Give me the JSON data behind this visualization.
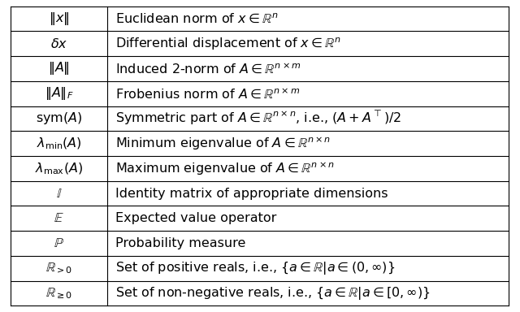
{
  "rows": [
    {
      "symbol": "$\\|x\\|$",
      "description": "Euclidean norm of $x \\in \\mathbb{R}^n$"
    },
    {
      "symbol": "$\\delta x$",
      "description": "Differential displacement of $x \\in \\mathbb{R}^n$"
    },
    {
      "symbol": "$\\|A\\|$",
      "description": "Induced 2-norm of $A \\in \\mathbb{R}^{n \\times m}$"
    },
    {
      "symbol": "$\\|A\\|_F$",
      "description": "Frobenius norm of $A \\in \\mathbb{R}^{n \\times m}$"
    },
    {
      "symbol": "$\\mathrm{sym}(A)$",
      "description": "Symmetric part of $A \\in \\mathbb{R}^{n \\times n}$, i.e., $(A + A^\\top)/2$"
    },
    {
      "symbol": "$\\lambda_{\\min}(A)$",
      "description": "Minimum eigenvalue of $A \\in \\mathbb{R}^{n \\times n}$"
    },
    {
      "symbol": "$\\lambda_{\\max}(A)$",
      "description": "Maximum eigenvalue of $A \\in \\mathbb{R}^{n \\times n}$"
    },
    {
      "symbol": "$\\mathbb{I}$",
      "description": "Identity matrix of appropriate dimensions"
    },
    {
      "symbol": "$\\mathbb{E}$",
      "description": "Expected value operator"
    },
    {
      "symbol": "$\\mathbb{P}$",
      "description": "Probability measure"
    },
    {
      "symbol": "$\\mathbb{R}_{>0}$",
      "description": "Set of positive reals, i.e., $\\{a \\in \\mathbb{R} | a \\in (0, \\infty)\\}$"
    },
    {
      "symbol": "$\\mathbb{R}_{\\geq 0}$",
      "description": "Set of non-negative reals, i.e., $\\{a \\in \\mathbb{R} | a \\in [0, \\infty)\\}$"
    }
  ],
  "col_split": 0.195,
  "background_color": "#ffffff",
  "border_color": "#000000",
  "text_color": "#000000",
  "fontsize": 11.5
}
